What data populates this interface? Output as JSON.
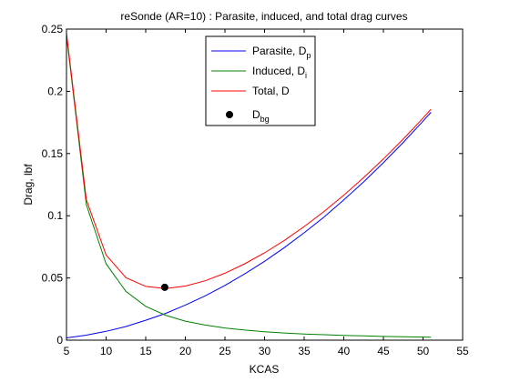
{
  "chart_data": {
    "type": "line",
    "title": "reSonde (AR=10) : Parasite, induced, and total drag curves",
    "xlabel": "KCAS",
    "ylabel": "Drag, lbf",
    "xlim": [
      5,
      55
    ],
    "ylim": [
      0,
      0.25
    ],
    "xticks": [
      "5",
      "10",
      "15",
      "20",
      "25",
      "30",
      "35",
      "40",
      "45",
      "50",
      "55"
    ],
    "yticks": [
      "0",
      "0.05",
      "0.1",
      "0.15",
      "0.2",
      "0.25"
    ],
    "grid": false,
    "legend_position": "top-center",
    "series": [
      {
        "name": "Parasite, D",
        "name_sub": "p",
        "color": "#0000ff",
        "x": [
          5,
          7.5,
          10,
          12.5,
          15,
          17.5,
          20,
          22.5,
          25,
          27.5,
          30,
          32.5,
          35,
          37.5,
          40,
          42.5,
          45,
          47.5,
          50,
          51
        ],
        "y": [
          0.0018,
          0.004,
          0.0071,
          0.011,
          0.016,
          0.0215,
          0.0282,
          0.0356,
          0.044,
          0.0533,
          0.0634,
          0.0744,
          0.0863,
          0.099,
          0.1127,
          0.1272,
          0.1426,
          0.1589,
          0.176,
          0.1831
        ]
      },
      {
        "name": "Induced, D",
        "name_sub": "i",
        "color": "#008000",
        "x": [
          5,
          7.5,
          10,
          12.5,
          15,
          17.5,
          20,
          22.5,
          25,
          27.5,
          30,
          32.5,
          35,
          37.5,
          40,
          42.5,
          45,
          47.5,
          50,
          51
        ],
        "y": [
          0.245,
          0.1089,
          0.0613,
          0.0392,
          0.0272,
          0.02,
          0.0153,
          0.0121,
          0.0098,
          0.0081,
          0.0068,
          0.0058,
          0.005,
          0.0044,
          0.0038,
          0.0034,
          0.003,
          0.0027,
          0.0025,
          0.0024
        ]
      },
      {
        "name": "Total, D",
        "name_sub": "",
        "color": "#ff0000",
        "x": [
          5,
          7.5,
          10,
          12.5,
          15,
          17.5,
          20,
          22.5,
          25,
          27.5,
          30,
          32.5,
          35,
          37.5,
          40,
          42.5,
          45,
          47.5,
          50,
          51
        ],
        "y": [
          0.2468,
          0.1129,
          0.0684,
          0.0502,
          0.0432,
          0.0415,
          0.0435,
          0.0477,
          0.0538,
          0.0614,
          0.0702,
          0.0802,
          0.0913,
          0.1034,
          0.1165,
          0.1306,
          0.1456,
          0.1616,
          0.1785,
          0.1855
        ]
      }
    ],
    "points": [
      {
        "name": "D",
        "name_sub": "bg",
        "color": "#000000",
        "x": 17.4,
        "y": 0.0425
      }
    ]
  }
}
